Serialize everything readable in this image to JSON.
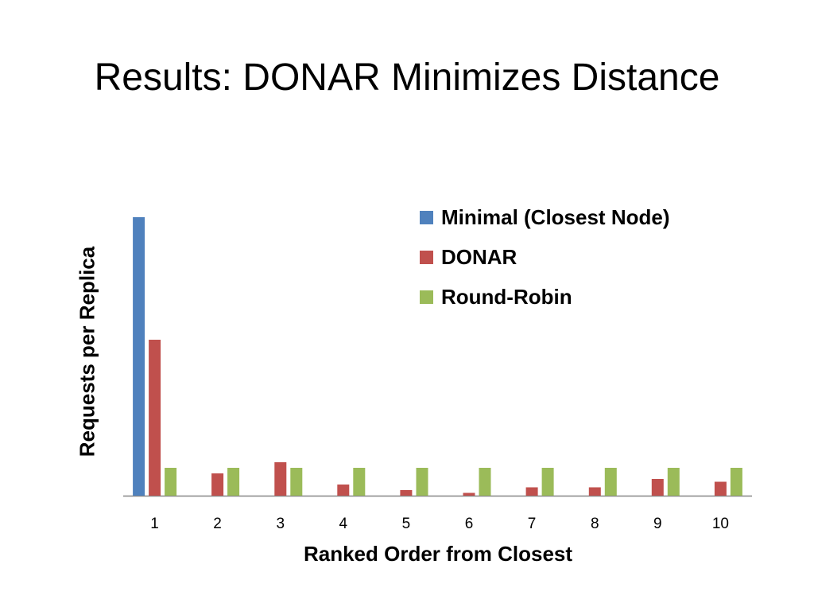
{
  "slide": {
    "title": "Results: DONAR Minimizes Distance"
  },
  "chart_data": {
    "type": "bar",
    "title": "",
    "xlabel": "Ranked Order from Closest",
    "ylabel": "Requests per Replica",
    "categories": [
      "1",
      "2",
      "3",
      "4",
      "5",
      "6",
      "7",
      "8",
      "9",
      "10"
    ],
    "series": [
      {
        "name": "Minimal (Closest Node)",
        "color": "#4F81BD",
        "values": [
          100,
          0,
          0,
          0,
          0,
          0,
          0,
          0,
          0,
          0
        ]
      },
      {
        "name": "DONAR",
        "color": "#C0504D",
        "values": [
          56,
          8,
          12,
          4,
          2,
          1,
          3,
          3,
          6,
          5
        ]
      },
      {
        "name": "Round-Robin",
        "color": "#9BBB59",
        "values": [
          10,
          10,
          10,
          10,
          10,
          10,
          10,
          10,
          10,
          10
        ]
      }
    ],
    "ylim": [
      0,
      100
    ],
    "grid": false,
    "y_tick_labels_shown": false,
    "legend_position": "top-right"
  }
}
